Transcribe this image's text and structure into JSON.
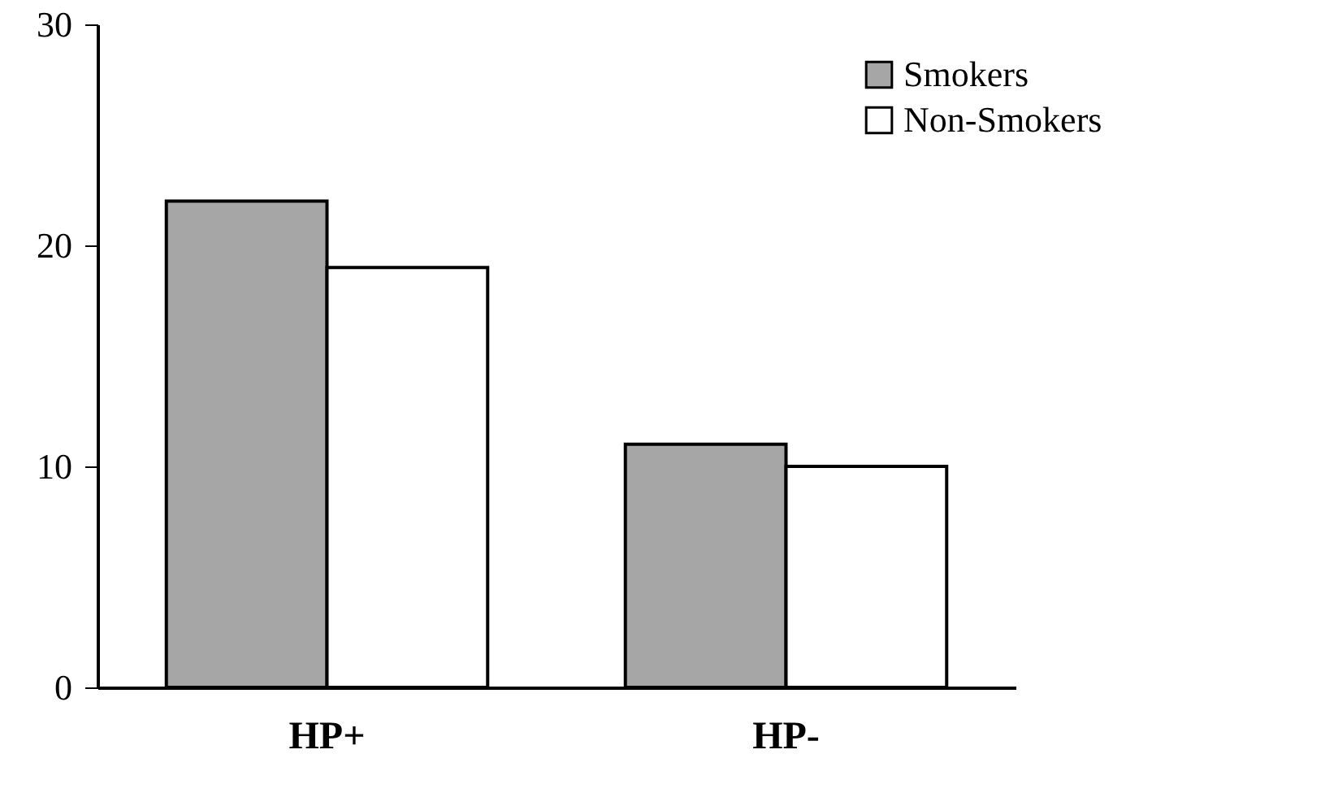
{
  "chart_data": {
    "type": "bar",
    "categories": [
      "HP+",
      "HP-"
    ],
    "series": [
      {
        "name": "Smokers",
        "color": "#a6a6a6",
        "values": [
          22,
          11
        ]
      },
      {
        "name": "Non-Smokers",
        "color": "#ffffff",
        "values": [
          19,
          10
        ]
      }
    ],
    "ylim": [
      0,
      30
    ],
    "yticks": [
      0,
      10,
      20,
      30
    ],
    "grid": false,
    "legend": "top right"
  }
}
